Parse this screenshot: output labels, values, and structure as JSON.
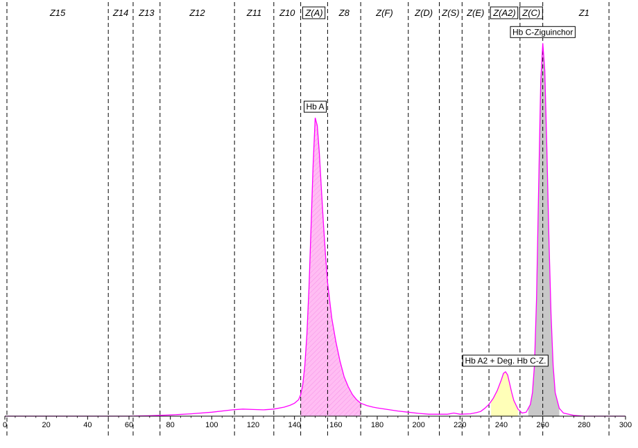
{
  "chart_data": {
    "type": "area",
    "title": "",
    "xlabel": "",
    "ylabel": "",
    "xlim": [
      0,
      300
    ],
    "ylim": [
      0,
      100
    ],
    "x_ticks": [
      0,
      20,
      40,
      60,
      80,
      100,
      120,
      140,
      160,
      180,
      200,
      220,
      240,
      260,
      280,
      300
    ],
    "zone_boundaries": [
      1,
      50,
      62,
      75,
      111,
      130,
      143,
      156,
      172,
      195,
      210,
      221,
      234,
      249,
      260,
      292
    ],
    "zones": [
      {
        "label": "Z15",
        "from": 1,
        "to": 50,
        "boxed": false
      },
      {
        "label": "Z14",
        "from": 50,
        "to": 62,
        "boxed": false
      },
      {
        "label": "Z13",
        "from": 62,
        "to": 75,
        "boxed": false
      },
      {
        "label": "Z12",
        "from": 75,
        "to": 111,
        "boxed": false
      },
      {
        "label": "Z11",
        "from": 111,
        "to": 130,
        "boxed": false
      },
      {
        "label": "Z10",
        "from": 130,
        "to": 143,
        "boxed": false
      },
      {
        "label": "Z(A)",
        "from": 143,
        "to": 156,
        "boxed": true
      },
      {
        "label": "Z8",
        "from": 156,
        "to": 172,
        "boxed": false
      },
      {
        "label": "Z(F)",
        "from": 172,
        "to": 195,
        "boxed": false
      },
      {
        "label": "Z(D)",
        "from": 195,
        "to": 210,
        "boxed": false
      },
      {
        "label": "Z(S)",
        "from": 210,
        "to": 221,
        "boxed": false
      },
      {
        "label": "Z(E)",
        "from": 221,
        "to": 234,
        "boxed": false
      },
      {
        "label": "Z(A2)",
        "from": 234,
        "to": 249,
        "boxed": true
      },
      {
        "label": "Z(C)",
        "from": 249,
        "to": 260,
        "boxed": true
      },
      {
        "label": "Z1",
        "from": 260,
        "to": 300,
        "boxed": false
      }
    ],
    "series": [
      {
        "fill": "#ffb3f0",
        "x": [
          0,
          20,
          40,
          60,
          70,
          80,
          90,
          100,
          110,
          115,
          120,
          125,
          130,
          135,
          138,
          140,
          142,
          143,
          144,
          145,
          146,
          147,
          148,
          149,
          150,
          151,
          152,
          153,
          154,
          155,
          156,
          158,
          160,
          162,
          164,
          166,
          168,
          170,
          172,
          175,
          178,
          180,
          185,
          190,
          195,
          200,
          205,
          210,
          214,
          217,
          220,
          225,
          228,
          230,
          232,
          234,
          236,
          238,
          240,
          241,
          242,
          243,
          244,
          245,
          246,
          248,
          250,
          252,
          254,
          255,
          256,
          257,
          258,
          259,
          260,
          261,
          262,
          263,
          264,
          265,
          266,
          268,
          270,
          275,
          280,
          290,
          300
        ],
        "y": [
          0,
          0,
          0,
          0,
          0.1,
          0.3,
          0.6,
          1.0,
          1.6,
          1.8,
          1.7,
          1.6,
          1.8,
          2.3,
          2.8,
          3.3,
          4.2,
          5.5,
          8,
          13,
          21,
          33,
          48,
          64,
          76,
          74,
          67,
          58,
          49,
          41,
          34,
          25,
          19,
          14,
          10,
          7.5,
          5.5,
          4.2,
          3.3,
          2.7,
          2.3,
          2.1,
          1.7,
          1.3,
          1.0,
          0.7,
          0.5,
          0.5,
          0.5,
          0.8,
          0.5,
          0.6,
          0.9,
          1.2,
          2.0,
          3.0,
          4.5,
          6.5,
          9.3,
          10.9,
          11.3,
          10.5,
          8.3,
          6.0,
          4.0,
          1.8,
          0.8,
          1.0,
          3.0,
          6.0,
          13,
          30,
          58,
          85,
          95,
          88,
          68,
          45,
          26,
          13,
          6,
          2,
          0.8,
          0.2,
          0,
          0,
          0
        ]
      }
    ],
    "peaks": [
      {
        "label": "Hb A",
        "x": 150,
        "y": 76,
        "from": 143,
        "to": 172,
        "fill": "#ffb3f0"
      },
      {
        "label": "Hb A2 + Deg. Hb C-Z.",
        "x": 242,
        "y": 11.3,
        "from": 235,
        "to": 248,
        "fill": "#ffffb8"
      },
      {
        "label": "Hb C-Ziguinchor",
        "x": 260,
        "y": 95,
        "from": 253,
        "to": 268,
        "fill": "#c8c8c8"
      }
    ],
    "line_color": "#ff00ff",
    "grid": false,
    "legend": "none"
  }
}
